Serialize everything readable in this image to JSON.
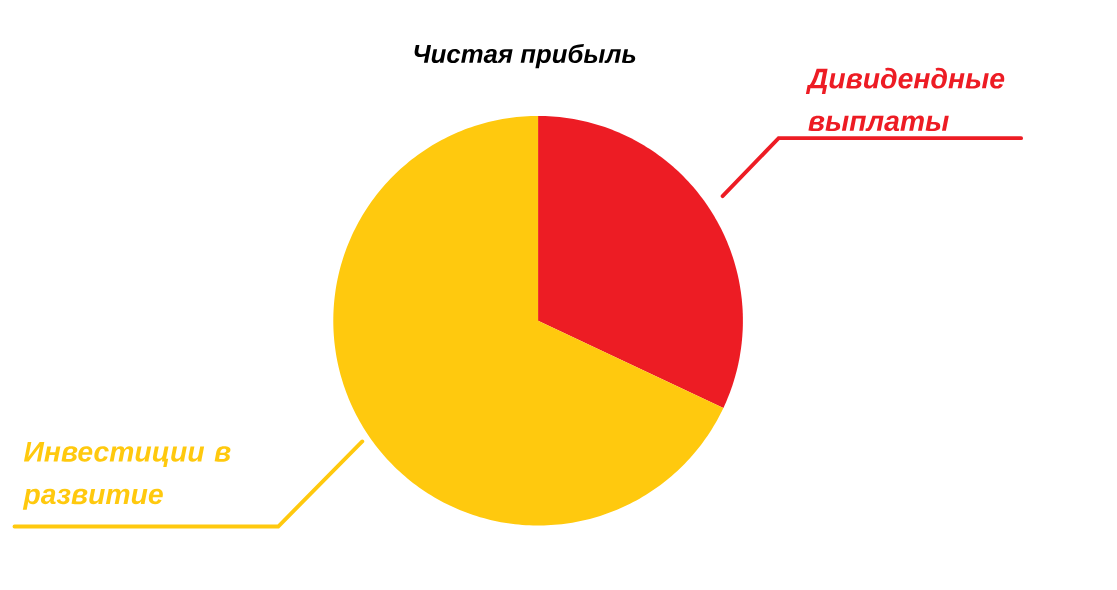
{
  "chart_data": {
    "type": "pie",
    "title": "Чистая прибыль",
    "categories": [
      "Дивидендные выплаты",
      "Инвестиции в развитие"
    ],
    "values": [
      32,
      68
    ],
    "colors": [
      "#ed1c24",
      "#ffc90e"
    ]
  }
}
